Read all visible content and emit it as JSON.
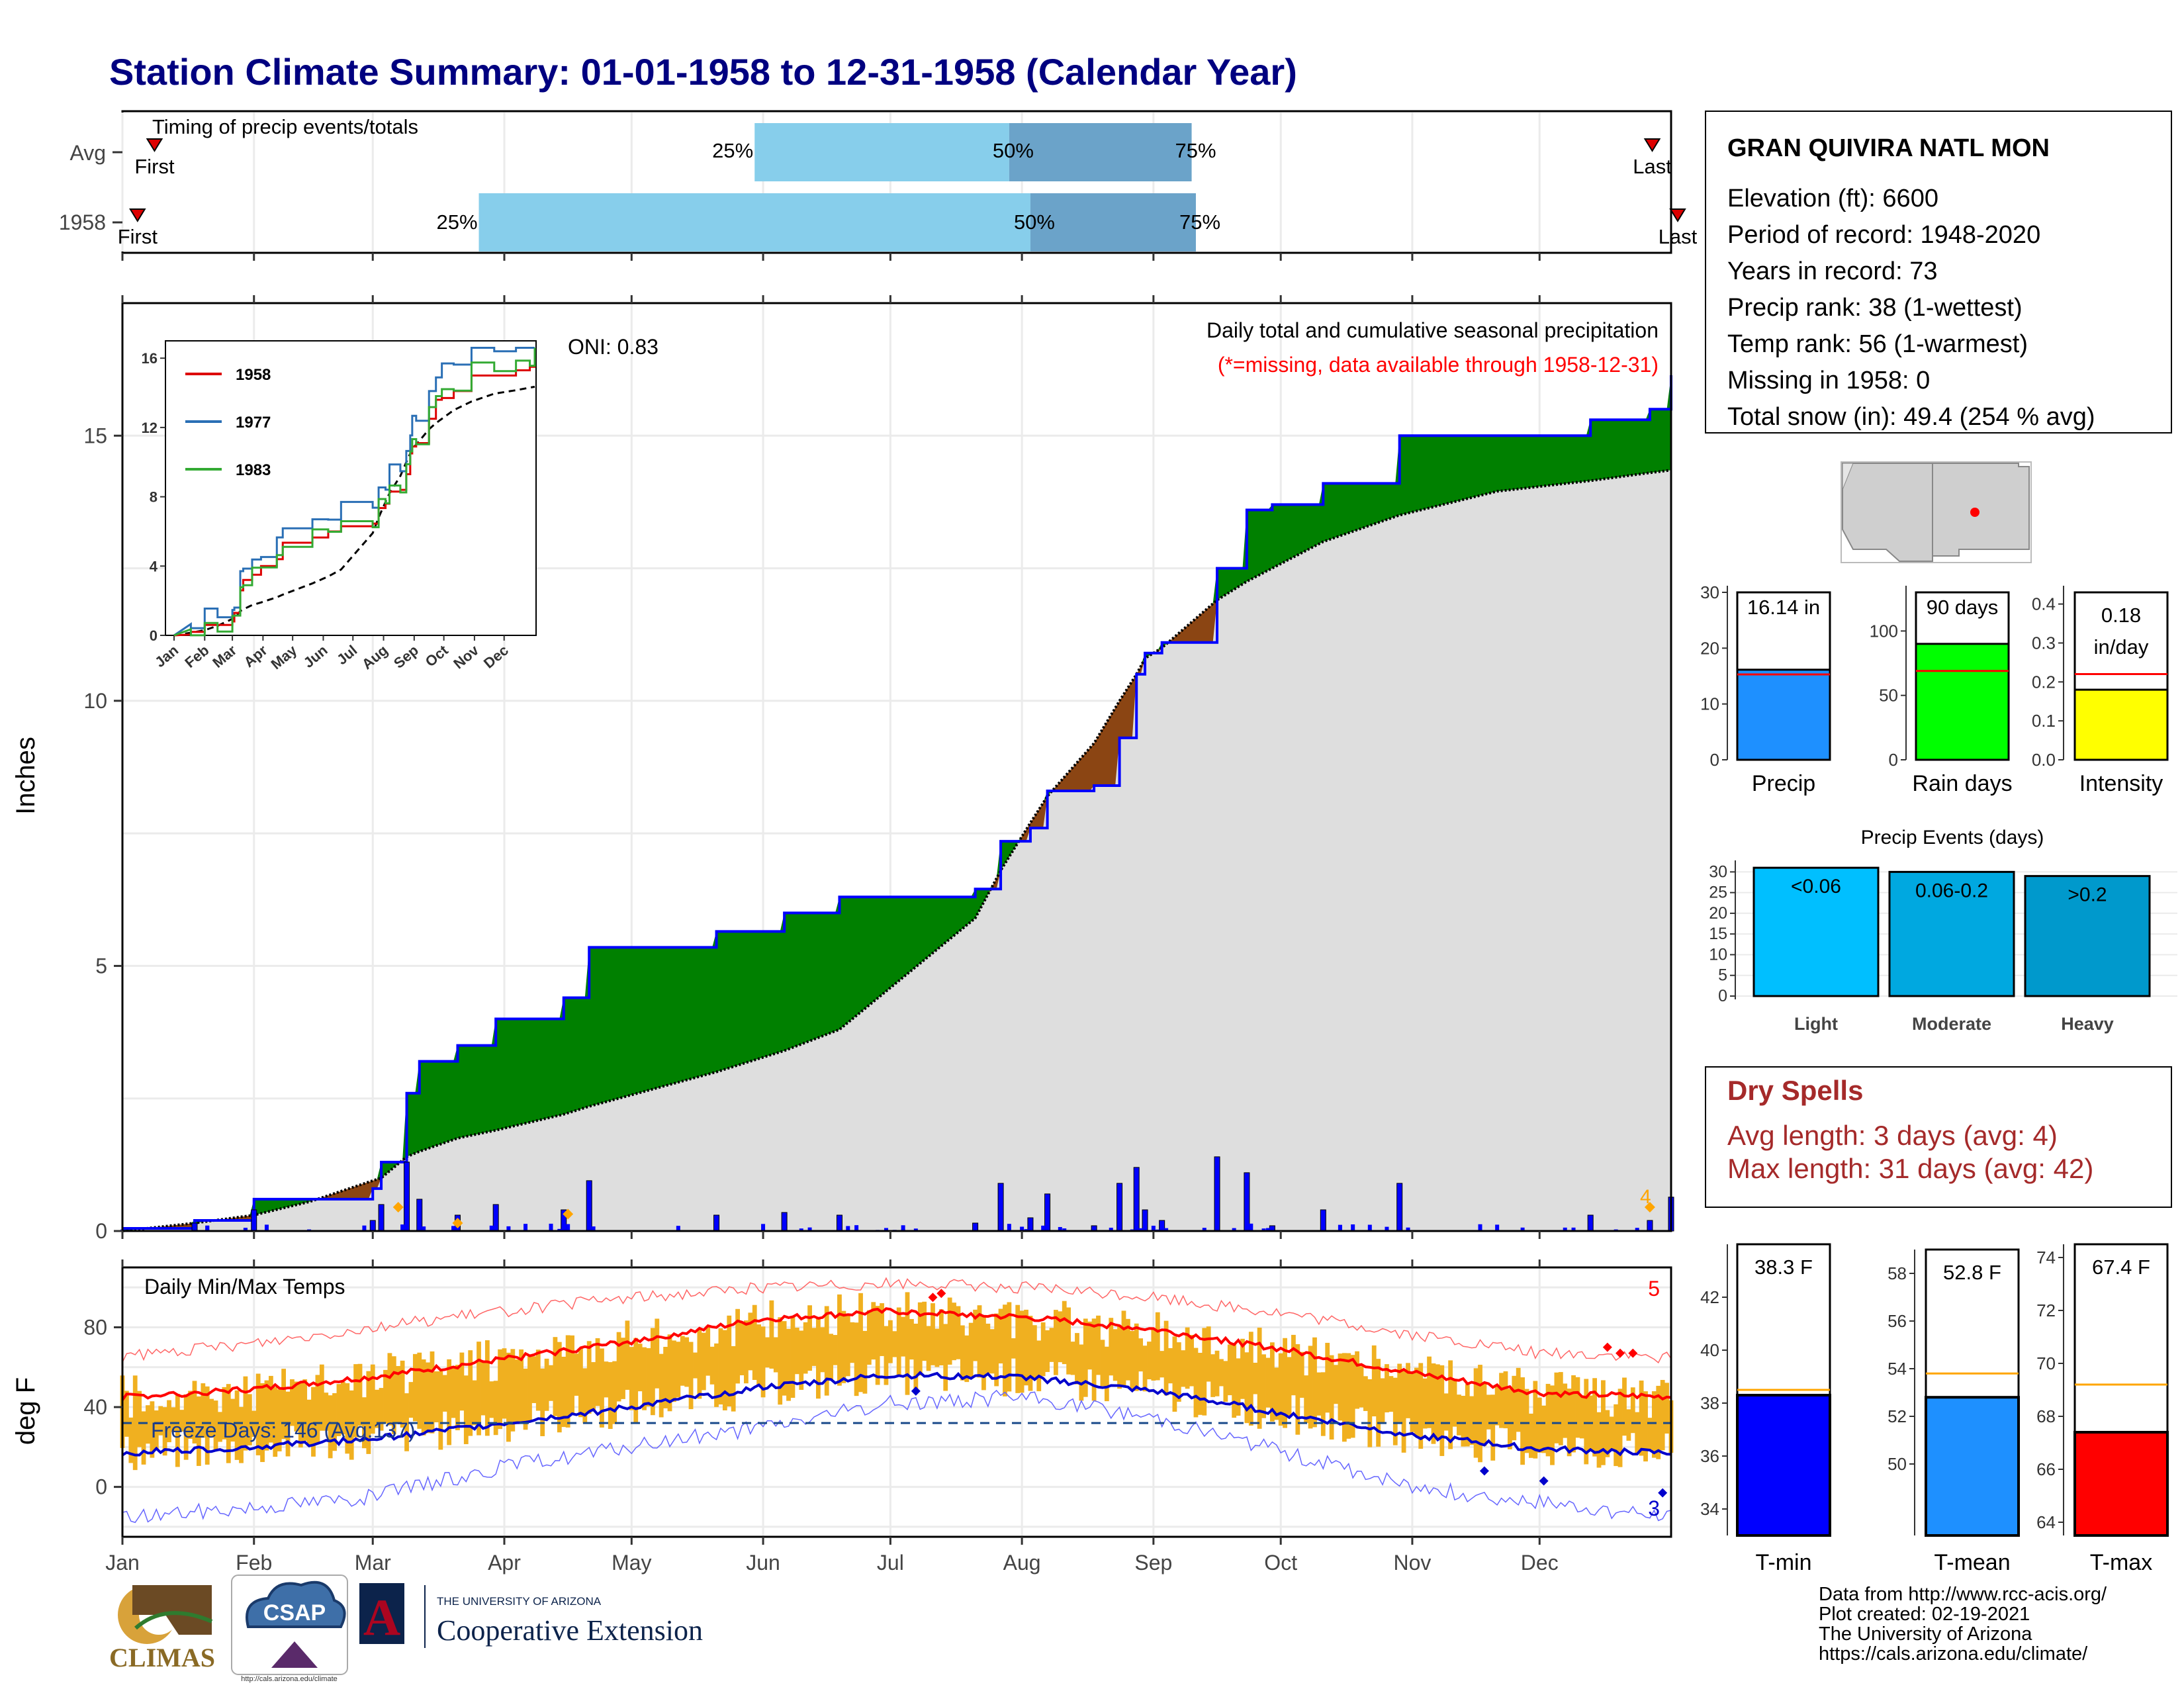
{
  "title": "Station Climate Summary: 01-01-1958 to 12-31-1958 (Calendar Year)",
  "colors": {
    "title": "#000080",
    "fill_green": "#008000",
    "fill_brown": "#8b4513",
    "fill_gray": "#dedede",
    "precip_line": "#0000ff",
    "timing_light": "#87ceeb",
    "timing_dark": "#6ba3c9",
    "tmax_line": "#ff0000",
    "tmin_line": "#0000cc",
    "temp_bar": "#f0b020",
    "dry_spell": "#a52a2a"
  },
  "timing": {
    "label": "Timing of precip events/totals",
    "rows": [
      {
        "name": "Avg",
        "first_label": "First",
        "last_label": "Last",
        "q25": "25%",
        "q50": "50%",
        "q75": "75%",
        "first_day": 7,
        "last_day": 360,
        "p25_day": 150,
        "p50_day": 210,
        "p75_day": 253
      },
      {
        "name": "1958",
        "first_label": "First",
        "last_label": "Last",
        "q25": "25%",
        "q50": "50%",
        "q75": "75%",
        "first_day": 3,
        "last_day": 366,
        "p25_day": 85,
        "p50_day": 215,
        "p75_day": 254
      }
    ]
  },
  "precip_panel": {
    "ylabel": "Inches",
    "oni": "ONI: 0.83",
    "title": "Daily total and cumulative seasonal precipitation",
    "missing_note": "(*=missing, data available through 1958-12-31)",
    "yticks": [
      "0",
      "5",
      "10",
      "15"
    ],
    "flag_label": "4"
  },
  "inset": {
    "yticks": [
      "0",
      "4",
      "8",
      "12",
      "16"
    ],
    "months": [
      "Jan",
      "Feb",
      "Mar",
      "Apr",
      "May",
      "Jun",
      "Jul",
      "Aug",
      "Sep",
      "Oct",
      "Nov",
      "Dec"
    ],
    "legend": [
      "1958",
      "1977",
      "1983"
    ]
  },
  "temp_panel": {
    "ylabel": "deg F",
    "title": "Daily Min/Max Temps",
    "freeze": "Freeze Days: 146 (Avg:137)",
    "yticks": [
      "0",
      "40",
      "80"
    ],
    "record_high_count": "5",
    "record_low_count": "3"
  },
  "months": [
    "Jan",
    "Feb",
    "Mar",
    "Apr",
    "May",
    "Jun",
    "Jul",
    "Aug",
    "Sep",
    "Oct",
    "Nov",
    "Dec"
  ],
  "station": {
    "name": "GRAN QUIVIRA NATL MON",
    "lines": [
      "Elevation (ft): 6600",
      "Period of record: 1948-2020",
      "Years in record: 73",
      "Precip rank: 38 (1-wettest)",
      "Temp rank: 56 (1-warmest)",
      "Missing in 1958: 0",
      "Total snow (in): 49.4 (254 % avg)"
    ]
  },
  "small_bars": [
    {
      "label": "Precip",
      "value_label": "16.14 in",
      "value": 16.14,
      "avg": 15.3,
      "ymax": 30,
      "yticks": [
        "0",
        "10",
        "20",
        "30"
      ],
      "color": "#1e90ff"
    },
    {
      "label": "Rain days",
      "value_label": "90 days",
      "value": 90,
      "avg": 69,
      "ymax": 130,
      "yticks": [
        "0",
        "50",
        "100"
      ],
      "color": "#00ff00"
    },
    {
      "label": "Intensity",
      "value_label_1": "0.18",
      "value_label_2": "in/day",
      "value": 0.18,
      "avg": 0.22,
      "ymax": 0.43,
      "yticks": [
        "0.0",
        "0.1",
        "0.2",
        "0.3",
        "0.4"
      ],
      "color": "#ffff00"
    }
  ],
  "precip_events": {
    "title": "Precip Events (days)",
    "yticks": [
      "0",
      "5",
      "10",
      "15",
      "20",
      "25",
      "30"
    ],
    "bars": [
      {
        "category": "Light",
        "label": "<0.06",
        "value": 31,
        "color": "#00bfff"
      },
      {
        "category": "Moderate",
        "label": "0.06-0.2",
        "value": 30,
        "color": "#00a8e0"
      },
      {
        "category": "Heavy",
        "label": ">0.2",
        "value": 29,
        "color": "#0099cc"
      }
    ]
  },
  "dry_spells": {
    "title": "Dry Spells",
    "avg_line": "Avg length: 3 days (avg: 4)",
    "max_line": "Max length: 31 days (avg: 42)"
  },
  "temp_bars": [
    {
      "label": "T-min",
      "value_label": "38.3 F",
      "value": 38.3,
      "avg": 38.5,
      "ymin": 33,
      "ymax": 44,
      "yticks": [
        "34",
        "36",
        "38",
        "40",
        "42"
      ],
      "color": "#0000ff"
    },
    {
      "label": "T-mean",
      "value_label": "52.8 F",
      "value": 52.8,
      "avg": 53.8,
      "ymin": 47,
      "ymax": 59,
      "yticks": [
        "50",
        "52",
        "54",
        "56",
        "58"
      ],
      "color": "#1e90ff"
    },
    {
      "label": "T-max",
      "value_label": "67.4 F",
      "value": 67.4,
      "avg": 69.2,
      "ymin": 63.5,
      "ymax": 74.5,
      "yticks": [
        "64",
        "66",
        "68",
        "70",
        "72",
        "74"
      ],
      "color": "#ff0000"
    }
  ],
  "footer": {
    "lines": [
      "Data from http://www.rcc-acis.org/",
      "Plot created: 02-19-2021",
      "The University of Arizona",
      "https://cals.arizona.edu/climate/"
    ]
  },
  "logos": {
    "climas": "CLIMAS",
    "csap": "CSAP",
    "csap_url": "http://cals.arizona.edu/climate",
    "ua_small": "THE UNIVERSITY OF ARIZONA",
    "ua_big": "Cooperative Extension",
    "ua_letter": "A"
  },
  "chart_data": [
    {
      "type": "area",
      "title": "Daily total and cumulative seasonal precipitation",
      "ylabel": "Inches",
      "ylim": [
        0,
        17.5
      ],
      "x": [
        1,
        18,
        32,
        45,
        60,
        62,
        68,
        71,
        80,
        89,
        105,
        111,
        141,
        157,
        170,
        202,
        208,
        215,
        219,
        230,
        236,
        240,
        242,
        246,
        259,
        266,
        272,
        284,
        302,
        325,
        347,
        361,
        366
      ],
      "series": [
        {
          "name": "1958 cumulative",
          "values": [
            0.05,
            0.2,
            0.6,
            0.6,
            0.8,
            1.3,
            2.6,
            3.2,
            3.5,
            4.0,
            4.4,
            5.35,
            5.65,
            6.0,
            6.3,
            6.45,
            7.35,
            7.6,
            8.3,
            8.4,
            9.3,
            10.5,
            10.9,
            11.1,
            12.5,
            13.6,
            13.7,
            14.1,
            15.0,
            15.0,
            15.3,
            15.5,
            16.14
          ]
        },
        {
          "name": "Average cumulative",
          "values": [
            0.0,
            0.15,
            0.3,
            0.55,
            0.95,
            1.0,
            1.4,
            1.5,
            1.75,
            1.9,
            2.2,
            2.35,
            3.0,
            3.4,
            3.8,
            5.9,
            6.8,
            7.7,
            8.2,
            9.2,
            10.0,
            10.5,
            10.8,
            11.0,
            11.9,
            12.25,
            12.5,
            13.0,
            13.5,
            13.95,
            14.15,
            14.3,
            14.35
          ]
        }
      ]
    },
    {
      "type": "line",
      "ylabel": "deg F",
      "ylim": [
        -25,
        110
      ],
      "x": [
        1,
        32,
        60,
        91,
        121,
        152,
        182,
        213,
        244,
        274,
        305,
        335,
        366
      ],
      "series": [
        {
          "name": "Avg Tmax",
          "values": [
            45,
            49,
            55,
            64,
            73,
            84,
            88,
            85,
            79,
            69,
            57,
            47,
            45
          ]
        },
        {
          "name": "Avg Tmin",
          "values": [
            17,
            20,
            24,
            32,
            40,
            50,
            56,
            55,
            48,
            37,
            26,
            19,
            17
          ]
        },
        {
          "name": "Record high",
          "values": [
            65,
            72,
            80,
            88,
            95,
            100,
            102,
            100,
            95,
            87,
            76,
            67,
            65
          ]
        },
        {
          "name": "Record low",
          "values": [
            -15,
            -10,
            -5,
            10,
            20,
            30,
            42,
            45,
            35,
            18,
            0,
            -8,
            -15
          ]
        }
      ]
    }
  ]
}
